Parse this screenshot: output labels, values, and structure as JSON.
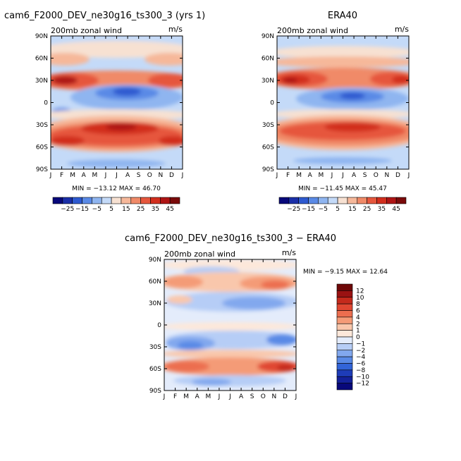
{
  "colors": {
    "abs_levels": [
      "#08087a",
      "#1a2fa8",
      "#2e5ad0",
      "#5a8ae6",
      "#8fb5f0",
      "#c4daf8",
      "#f7e1d2",
      "#f6b89a",
      "#f08a68",
      "#e6573d",
      "#d22e1d",
      "#ae1414",
      "#7a0a0a"
    ],
    "diff_levels": [
      "#08087a",
      "#14219a",
      "#1e3cb8",
      "#3264d8",
      "#5a8ae6",
      "#82a8ee",
      "#b6cdf6",
      "#e4ecfb",
      "#fde8da",
      "#f9c7ac",
      "#f49b77",
      "#ec6e4f",
      "#e04732",
      "#c52a1c",
      "#9a1212",
      "#6e0808"
    ],
    "frame": "#000000"
  },
  "chart_data": [
    {
      "type": "heatmap",
      "title": "cam6_F2000_DEV_ne30g16_ts300_3 (yrs 1)",
      "subtitle": "200mb zonal wind",
      "units": "m/s",
      "x_ticks": [
        "J",
        "F",
        "M",
        "A",
        "M",
        "J",
        "J",
        "A",
        "S",
        "O",
        "N",
        "D",
        "J"
      ],
      "y_ticks": [
        "90N",
        "60N",
        "30N",
        "0",
        "30S",
        "60S",
        "90S"
      ],
      "stats": "MIN = −13.12 MAX =  46.70",
      "colorbar_labels": [
        "−25",
        "−15",
        "−5",
        "5",
        "15",
        "25",
        "35",
        "45"
      ]
    },
    {
      "type": "heatmap",
      "title": "ERA40",
      "subtitle": "200mb zonal wind",
      "units": "m/s",
      "x_ticks": [
        "J",
        "F",
        "M",
        "A",
        "M",
        "J",
        "J",
        "A",
        "S",
        "O",
        "N",
        "D",
        "J"
      ],
      "y_ticks": [
        "90N",
        "60N",
        "30N",
        "0",
        "30S",
        "60S",
        "90S"
      ],
      "stats": "MIN = −11.45 MAX =  45.47",
      "colorbar_labels": [
        "−25",
        "−15",
        "−5",
        "5",
        "15",
        "25",
        "35",
        "45"
      ]
    },
    {
      "type": "heatmap",
      "title": "cam6_F2000_DEV_ne30g16_ts300_3 − ERA40",
      "subtitle": "200mb zonal wind",
      "units": "m/s",
      "x_ticks": [
        "J",
        "F",
        "M",
        "A",
        "M",
        "J",
        "J",
        "A",
        "S",
        "O",
        "N",
        "D",
        "J"
      ],
      "y_ticks": [
        "90N",
        "60N",
        "30N",
        "0",
        "30S",
        "60S",
        "90S"
      ],
      "stats": "MIN =  −9.15 MAX =  12.64",
      "colorbar_labels": [
        "12",
        "10",
        "8",
        "6",
        "4",
        "2",
        "1",
        "0",
        "−1",
        "−2",
        "−4",
        "−6",
        "−8",
        "−10",
        "−12"
      ]
    }
  ]
}
